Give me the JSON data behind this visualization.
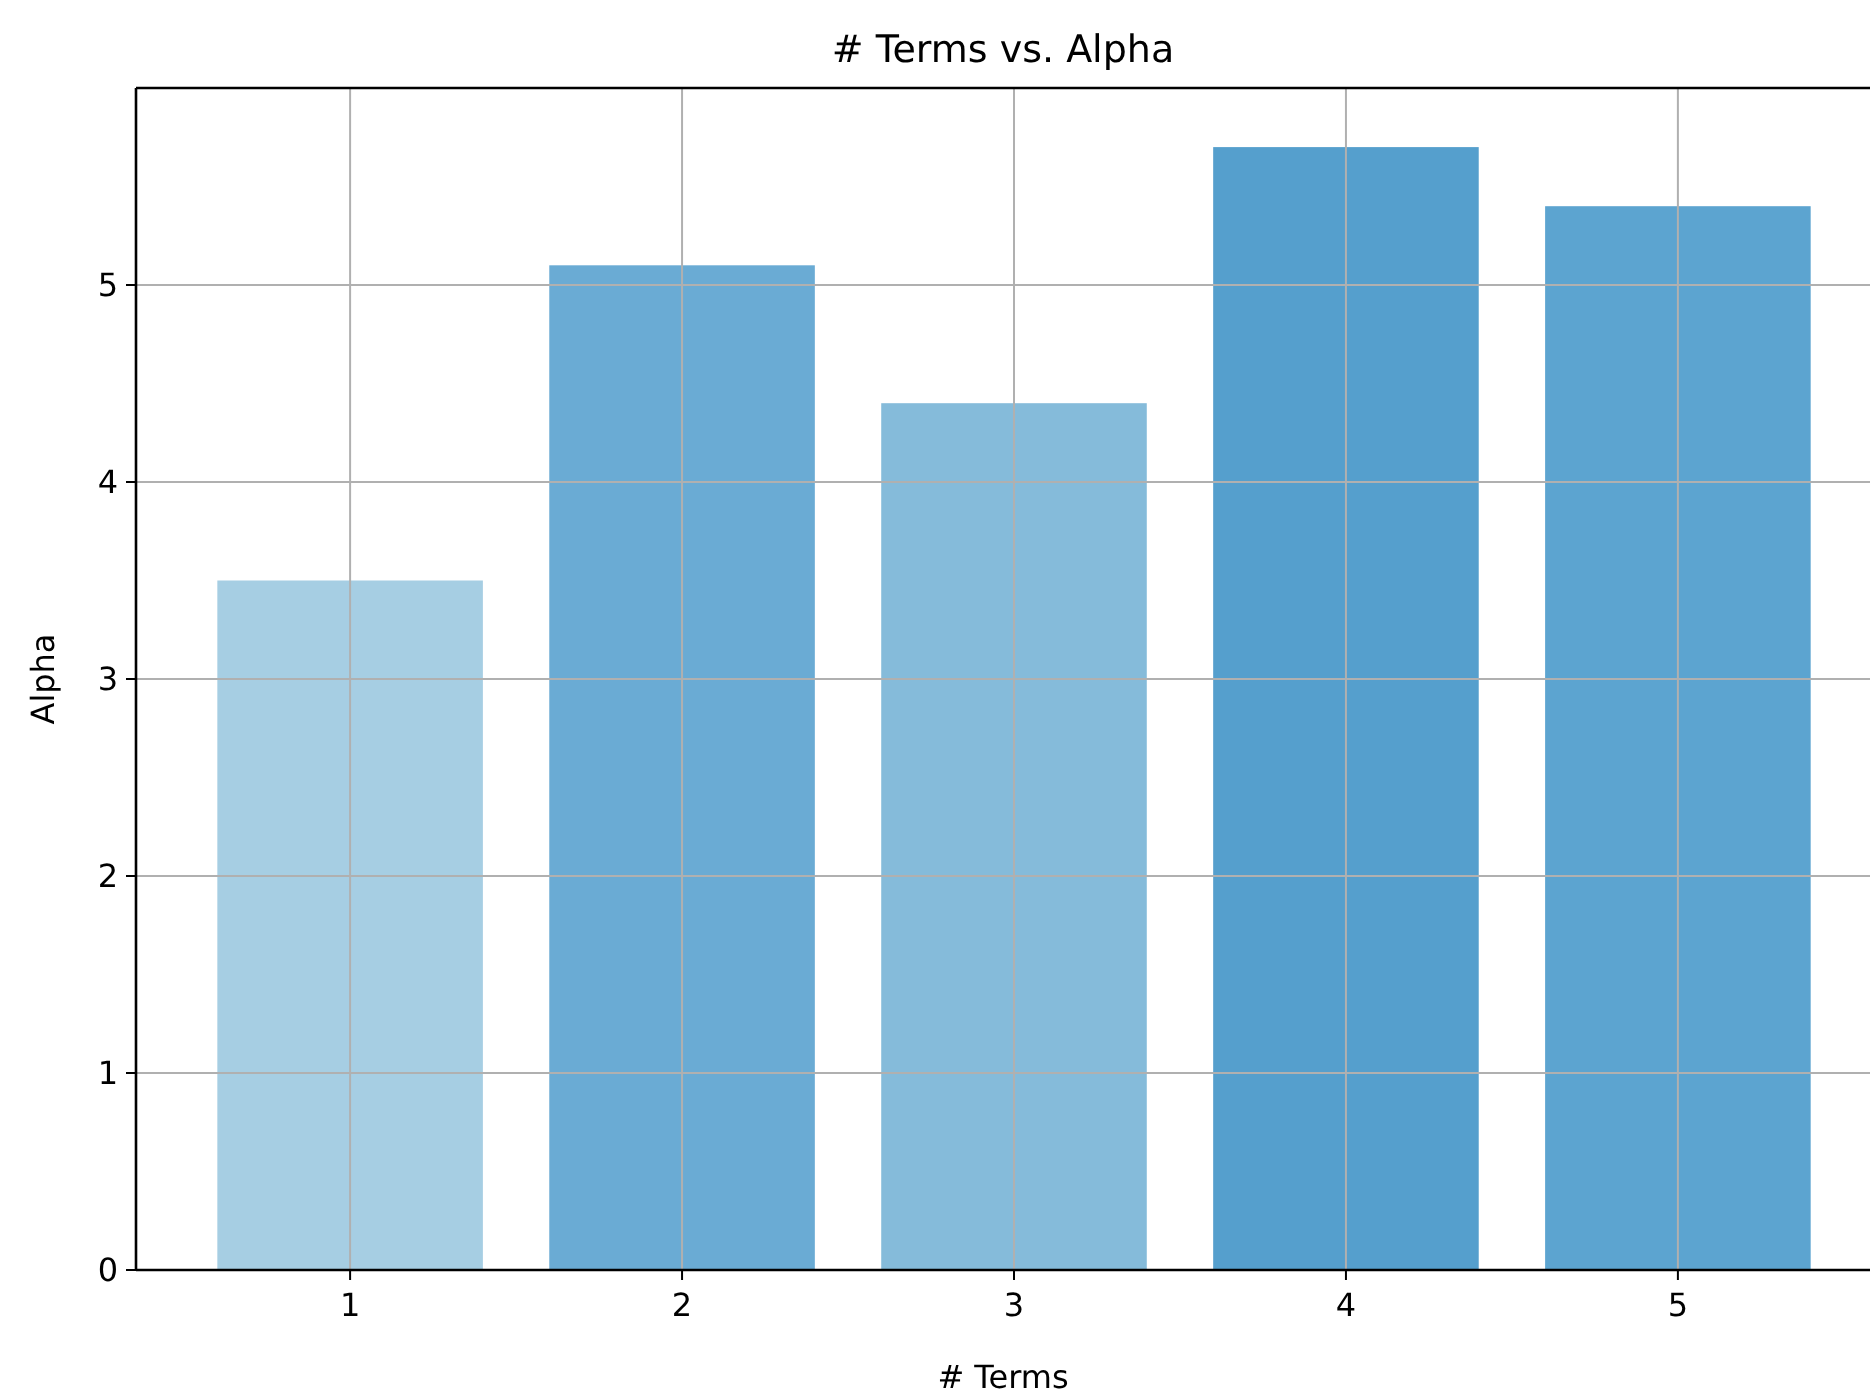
{
  "chart_data": {
    "type": "bar",
    "title": "# Terms vs. Alpha",
    "xlabel": "# Terms",
    "ylabel": "Alpha",
    "categories": [
      "1",
      "2",
      "3",
      "4",
      "5"
    ],
    "values": [
      3.5,
      5.1,
      4.4,
      5.7,
      5.4
    ],
    "colors": [
      "#a6cee3",
      "#6aabd4",
      "#85bbda",
      "#559fcd",
      "#5ca4d0"
    ],
    "ylim": [
      0,
      6
    ],
    "yticks": [
      0,
      1,
      2,
      3,
      4,
      5
    ],
    "grid": true
  }
}
